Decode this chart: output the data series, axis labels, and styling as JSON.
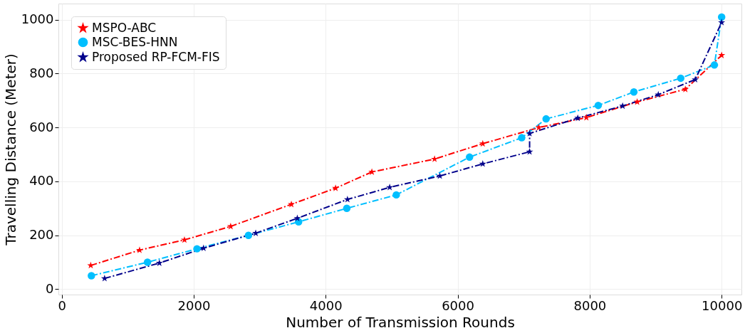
{
  "chart_data": {
    "type": "line",
    "xlabel": "Number of Transmission Rounds",
    "ylabel": "Travelling Distance (Meter)",
    "xlim": [
      -50,
      10300
    ],
    "ylim": [
      -20,
      1060
    ],
    "xticks": [
      0,
      2000,
      4000,
      6000,
      8000,
      10000
    ],
    "yticks": [
      0,
      200,
      400,
      600,
      800,
      1000
    ],
    "grid": true,
    "legend": "top left",
    "line_style": "dashed",
    "series": [
      {
        "name": "MSPO-ABC",
        "color": "#ff0000",
        "marker": "star",
        "x": [
          440,
          1180,
          1860,
          2560,
          3480,
          4150,
          4700,
          5650,
          6380,
          7230,
          7950,
          8720,
          9450,
          10000
        ],
        "values": [
          88,
          145,
          183,
          233,
          315,
          375,
          435,
          483,
          540,
          600,
          637,
          695,
          742,
          868
        ]
      },
      {
        "name": "MSC-BES-HNN",
        "color": "#00bfff",
        "marker": "circle",
        "x": [
          450,
          1300,
          2050,
          2830,
          3590,
          4320,
          5070,
          6180,
          6970,
          7340,
          8130,
          8670,
          9380,
          9890,
          10000
        ],
        "values": [
          50,
          100,
          150,
          200,
          250,
          300,
          350,
          490,
          562,
          632,
          682,
          732,
          783,
          832,
          1010
        ]
      },
      {
        "name": "Proposed RP-FCM-FIS",
        "color": "#00008b",
        "marker": "star",
        "x": [
          650,
          1480,
          2150,
          2940,
          3570,
          4330,
          4970,
          5730,
          6380,
          7090,
          7090,
          7820,
          8500,
          9040,
          9600,
          10000
        ],
        "values": [
          40,
          97,
          152,
          208,
          263,
          333,
          378,
          420,
          465,
          510,
          578,
          635,
          680,
          722,
          778,
          990
        ]
      }
    ]
  }
}
